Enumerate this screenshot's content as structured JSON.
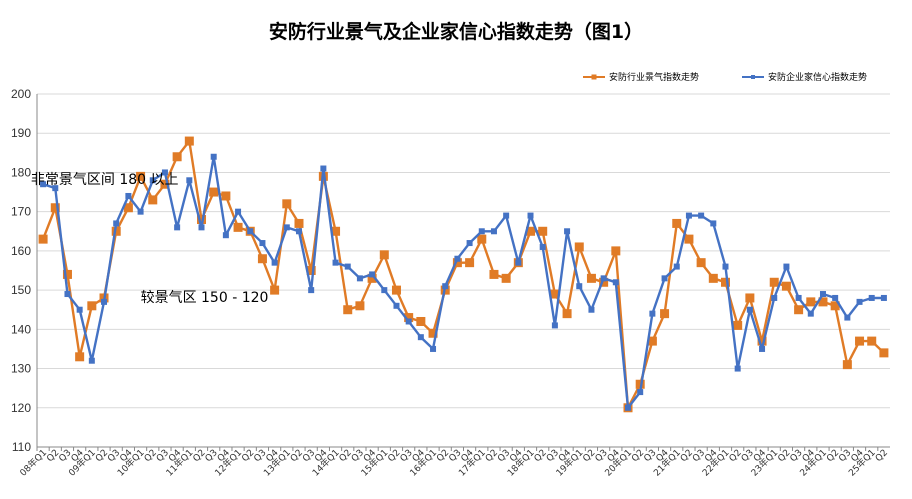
{
  "chart_data": {
    "type": "line",
    "title": "安防行业景气及企业家信心指数走势（图1）",
    "ylim": [
      110,
      200
    ],
    "yticks": [
      110,
      120,
      130,
      140,
      150,
      160,
      170,
      180,
      190,
      200
    ],
    "grid": "horizontal",
    "legend": "top-right",
    "annotations": [
      {
        "text": "非常景气区间  180 以上",
        "x": "12年Q4",
        "y": 177
      },
      {
        "text": "较景气区 150 - 120",
        "x": "10年Q1",
        "y": 147
      }
    ],
    "categories": [
      "08年Q1",
      "08年Q2",
      "Q3",
      "Q4",
      "09年Q1",
      "Q2",
      "Q3",
      "Q4",
      "10年Q1",
      "Q2",
      "Q3",
      "Q4",
      "11年Q1",
      "Q2",
      "Q3",
      "Q4",
      "12年Q1",
      "Q2",
      "Q3",
      "Q4",
      "13年Q1",
      "Q2",
      "Q3",
      "Q4",
      "14年Q1",
      "Q2",
      "Q3",
      "Q4",
      "15年Q1",
      "Q2",
      "Q3",
      "Q4",
      "16年Q1",
      "Q2",
      "Q3",
      "Q4",
      "17年Q1",
      "Q2",
      "Q3",
      "Q4",
      "18年Q1",
      "Q2",
      "Q3",
      "Q4",
      "19年Q1",
      "Q2",
      "Q3",
      "Q4",
      "20年Q1",
      "Q2",
      "Q3",
      "Q4",
      "21年Q1",
      "Q2",
      "Q3",
      "Q4",
      "22年Q1",
      "Q2",
      "Q3",
      "Q4",
      "23年Q1",
      "Q2",
      "Q3",
      "Q4",
      "24年Q1",
      "Q2",
      "Q3",
      "Q4",
      "25年Q1",
      "Q2"
    ],
    "xtick_labels": [
      "08年Q1",
      "Q2",
      "Q3",
      "Q4",
      "09年Q1",
      "Q2",
      "Q3",
      "Q4",
      "10年Q1",
      "Q2",
      "Q3",
      "Q4",
      "11年Q1",
      "Q2",
      "Q3",
      "Q4",
      "12年Q1",
      "Q2",
      "Q3",
      "Q4",
      "13年Q1",
      "Q2",
      "Q3",
      "Q4",
      "14年Q1",
      "Q2",
      "Q3",
      "Q4",
      "15年Q1",
      "Q2",
      "Q3",
      "Q4",
      "16年Q1",
      "Q2",
      "Q3",
      "Q4",
      "17年Q1",
      "Q2",
      "Q3",
      "Q4",
      "18年Q1",
      "Q2",
      "Q3",
      "Q4",
      "19年Q1",
      "Q2",
      "Q3",
      "Q4",
      "20年Q1",
      "Q2",
      "Q3",
      "Q4",
      "21年Q1",
      "Q2",
      "Q3",
      "Q4",
      "22年Q1",
      "Q2",
      "Q3",
      "Q4",
      "23年Q1",
      "Q2",
      "Q3",
      "Q4",
      "24年Q1",
      "Q2",
      "Q3",
      "Q4",
      "25年Q1",
      "Q2"
    ],
    "series": [
      {
        "name": "安防行业景气指数走势",
        "color": "#E07B26",
        "marker": "square",
        "values": [
          163,
          171,
          154,
          133,
          146,
          148,
          165,
          171,
          179,
          173,
          177,
          184,
          188,
          168,
          175,
          174,
          166,
          165,
          158,
          150,
          172,
          167,
          155,
          179,
          165,
          145,
          146,
          153,
          159,
          150,
          143,
          142,
          139,
          150,
          157,
          157,
          163,
          154,
          153,
          157,
          165,
          165,
          149,
          144,
          161,
          153,
          152,
          160,
          120,
          126,
          137,
          144,
          167,
          163,
          157,
          153,
          152,
          141,
          148,
          137,
          152,
          151,
          145,
          147,
          147,
          146,
          131,
          137,
          137,
          134
        ]
      },
      {
        "name": "安防企业家信心指数走势",
        "color": "#4472C4",
        "marker": "square-small",
        "values": [
          177,
          176,
          149,
          145,
          132,
          147,
          167,
          174,
          170,
          178,
          180,
          166,
          178,
          166,
          184,
          164,
          170,
          165,
          162,
          157,
          166,
          165,
          150,
          181,
          157,
          156,
          153,
          154,
          150,
          146,
          142,
          138,
          135,
          151,
          158,
          162,
          165,
          165,
          169,
          157,
          169,
          161,
          141,
          165,
          151,
          145,
          153,
          152,
          120,
          124,
          144,
          153,
          156,
          169,
          169,
          167,
          156,
          130,
          145,
          135,
          148,
          156,
          148,
          144,
          149,
          148,
          143,
          147,
          148,
          148
        ]
      }
    ]
  }
}
